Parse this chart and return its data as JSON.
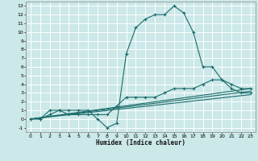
{
  "xlabel": "Humidex (Indice chaleur)",
  "bg_color": "#cce8e8",
  "grid_color": "#ffffff",
  "line_color": "#1a6b6b",
  "xlim": [
    -0.5,
    23.5
  ],
  "ylim": [
    -1.5,
    13.5
  ],
  "xticks": [
    0,
    1,
    2,
    3,
    4,
    5,
    6,
    7,
    8,
    9,
    10,
    11,
    12,
    13,
    14,
    15,
    16,
    17,
    18,
    19,
    20,
    21,
    22,
    23
  ],
  "yticks": [
    -1,
    0,
    1,
    2,
    3,
    4,
    5,
    6,
    7,
    8,
    9,
    10,
    11,
    12,
    13
  ],
  "line1_x": [
    0,
    1,
    2,
    3,
    4,
    5,
    6,
    7,
    8,
    9,
    10,
    11,
    12,
    13,
    14,
    15,
    16,
    17,
    18,
    19,
    20,
    21,
    22,
    23
  ],
  "line1_y": [
    0,
    0,
    1,
    1,
    1,
    1,
    1,
    0,
    -1,
    -0.5,
    7.5,
    10.5,
    11.5,
    12,
    12,
    13,
    12.2,
    10,
    6,
    6,
    4.5,
    3.5,
    3,
    3
  ],
  "line2_x": [
    0,
    1,
    2,
    3,
    4,
    5,
    6,
    7,
    8,
    9,
    10,
    11,
    12,
    13,
    14,
    15,
    16,
    17,
    18,
    19,
    20,
    21,
    22,
    23
  ],
  "line2_y": [
    0,
    0,
    0.5,
    1,
    0.5,
    0.5,
    0.5,
    0.5,
    0.5,
    1.5,
    2.5,
    2.5,
    2.5,
    2.5,
    3,
    3.5,
    3.5,
    3.5,
    4,
    4.5,
    4.5,
    4,
    3.5,
    3.5
  ],
  "line3_x": [
    0,
    23
  ],
  "line3_y": [
    0,
    3.2
  ],
  "line4_x": [
    0,
    23
  ],
  "line4_y": [
    0,
    3.5
  ],
  "line5_x": [
    0,
    23
  ],
  "line5_y": [
    0,
    2.8
  ]
}
